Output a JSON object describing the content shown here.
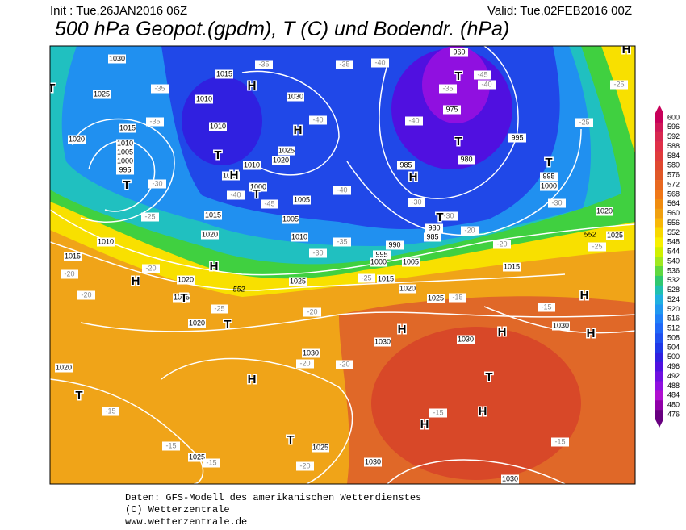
{
  "header": {
    "init": "Init : Tue,26JAN2016 06Z",
    "valid": "Valid: Tue,02FEB2016 00Z",
    "title": "500 hPa Geopot.(gpdm), T (C) und Bodendr. (hPa)"
  },
  "map": {
    "pressure_centers": [
      "H",
      "H",
      "T",
      "H",
      "T",
      "T",
      "H",
      "T",
      "T",
      "T",
      "T",
      "H",
      "T",
      "H",
      "H",
      "T",
      "T",
      "H",
      "H",
      "H",
      "H",
      "T",
      "H",
      "T",
      "T",
      "H",
      "H"
    ],
    "isobar_labels": [
      "1030",
      "1015",
      "1025",
      "1010",
      "1030",
      "1015",
      "1010",
      "1010",
      "1005",
      "1000",
      "995",
      "1025",
      "1020",
      "1010",
      "1015",
      "1020",
      "1000",
      "1005",
      "1005",
      "1015",
      "1020",
      "1010",
      "1015",
      "1010",
      "985",
      "975",
      "980",
      "995",
      "995",
      "1000",
      "990",
      "995",
      "1000",
      "1005",
      "1015",
      "1020",
      "1025",
      "1025",
      "1015",
      "1020",
      "1025",
      "1020",
      "1015",
      "1020",
      "1030",
      "1030",
      "1030",
      "1030",
      "1020",
      "1025",
      "1025",
      "1030",
      "1030",
      "985",
      "980",
      "960"
    ],
    "temperature_labels": [
      "-35",
      "-35",
      "-40",
      "-35",
      "-35",
      "-40",
      "-40",
      "-35",
      "-40",
      "-45",
      "-25",
      "-25",
      "-30",
      "-40",
      "-45",
      "-40",
      "-30",
      "-30",
      "-25",
      "-30",
      "-20",
      "-20",
      "-25",
      "-35",
      "-30",
      "-25",
      "-20",
      "-20",
      "-20",
      "-25",
      "-20",
      "-15",
      "-15",
      "-20",
      "-20",
      "-15",
      "-15",
      "-15",
      "-15",
      "-15",
      "-20"
    ],
    "contour_labels": [
      "552",
      "552"
    ]
  },
  "legend": {
    "levels": [
      {
        "value": 600,
        "color": "#c8005a"
      },
      {
        "value": 596,
        "color": "#d01858"
      },
      {
        "value": 592,
        "color": "#d82850"
      },
      {
        "value": 588,
        "color": "#e03048"
      },
      {
        "value": 584,
        "color": "#e03c3c"
      },
      {
        "value": 580,
        "color": "#e04830"
      },
      {
        "value": 576,
        "color": "#e05828"
      },
      {
        "value": 572,
        "color": "#e86820"
      },
      {
        "value": 568,
        "color": "#f07818"
      },
      {
        "value": 564,
        "color": "#f08c10"
      },
      {
        "value": 560,
        "color": "#f0a010"
      },
      {
        "value": 556,
        "color": "#f8b808"
      },
      {
        "value": 552,
        "color": "#f8d800"
      },
      {
        "value": 548,
        "color": "#f8f000"
      },
      {
        "value": 544,
        "color": "#d0f000"
      },
      {
        "value": 540,
        "color": "#a0e820"
      },
      {
        "value": 536,
        "color": "#60d840"
      },
      {
        "value": 532,
        "color": "#30c870"
      },
      {
        "value": 528,
        "color": "#20c0b0"
      },
      {
        "value": 524,
        "color": "#20b0e0"
      },
      {
        "value": 520,
        "color": "#2098f0"
      },
      {
        "value": 516,
        "color": "#2080f8"
      },
      {
        "value": 512,
        "color": "#2068f8"
      },
      {
        "value": 508,
        "color": "#2050f0"
      },
      {
        "value": 504,
        "color": "#2038e8"
      },
      {
        "value": 500,
        "color": "#3020e0"
      },
      {
        "value": 496,
        "color": "#5010e0"
      },
      {
        "value": 492,
        "color": "#7010e0"
      },
      {
        "value": 488,
        "color": "#9010e0"
      },
      {
        "value": 484,
        "color": "#b010d0"
      },
      {
        "value": 480,
        "color": "#9000a8"
      },
      {
        "value": 476,
        "color": "#680080"
      }
    ]
  },
  "footer": {
    "source": "Daten: GFS-Modell des amerikanischen Wetterdienstes",
    "copyright": "(C) Wetterzentrale",
    "url": "www.wetterzentrale.de"
  }
}
